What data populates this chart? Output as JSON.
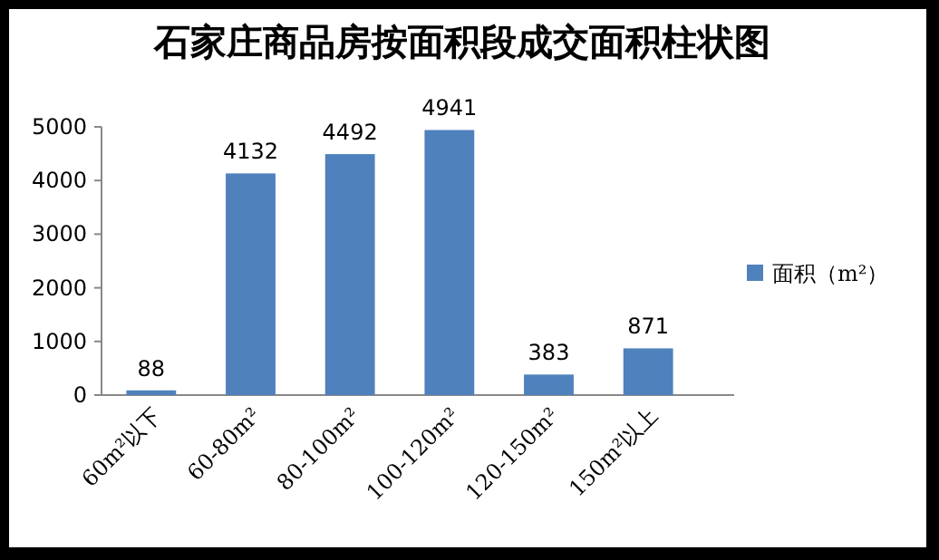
{
  "chart_data": {
    "type": "bar",
    "title": "石家庄商品房按面积段成交面积柱状图",
    "categories": [
      "60m²以下",
      "60-80m²",
      "80-100m²",
      "100-120m²",
      "120-150m²",
      "150m²以上"
    ],
    "series": [
      {
        "name": "面积（m²）",
        "color": "#4f81bd",
        "values": [
          88,
          4132,
          4492,
          4941,
          383,
          871
        ]
      }
    ],
    "ylim": [
      0,
      5000
    ],
    "yticks": [
      0,
      1000,
      2000,
      3000,
      4000,
      5000
    ],
    "data_labels": true,
    "legend": "right",
    "grid": false
  }
}
